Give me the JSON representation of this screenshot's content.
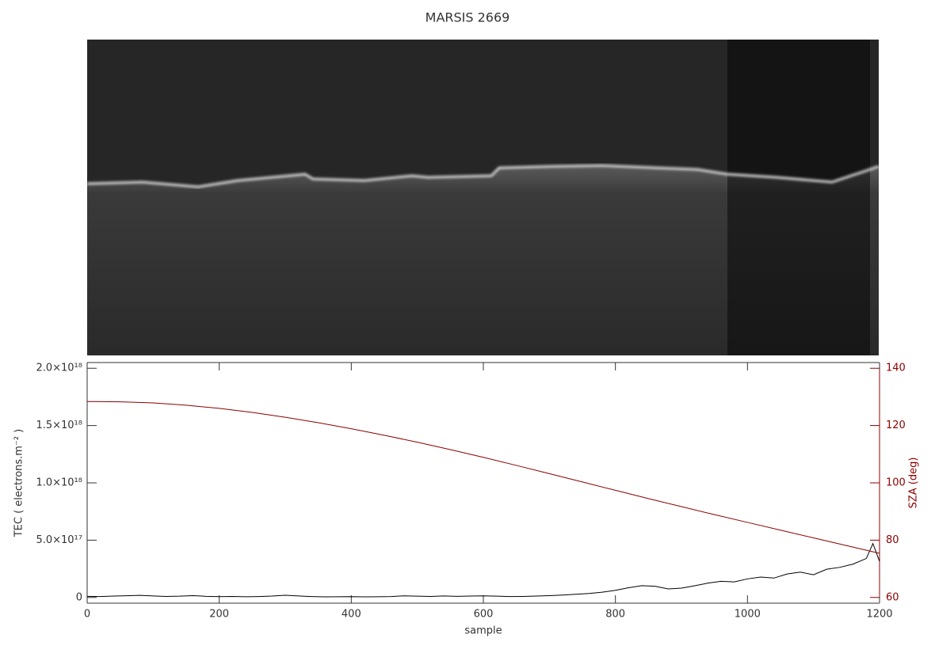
{
  "chart_data": {
    "type": "line",
    "title": "MARSIS 2669",
    "x_label": "sample",
    "y_label": "TEC ( electrons.m⁻² )",
    "y2_label": "SZA (deg)",
    "xlim": [
      0,
      1200
    ],
    "xticks": [
      0,
      200,
      400,
      600,
      800,
      1000,
      1200
    ],
    "ylim": [
      -5e+16,
      2.05e+18
    ],
    "yticks": [
      0,
      {
        "value": 5e+17,
        "label": "5.0×10¹⁷"
      },
      {
        "value": 1e+18,
        "label": "1.0×10¹⁸"
      },
      {
        "value": 1.5e+18,
        "label": "1.5×10¹⁸"
      },
      {
        "value": 2e+18,
        "label": "2.0×10¹⁸"
      }
    ],
    "y2lim": [
      58,
      142
    ],
    "y2ticks": [
      60,
      80,
      100,
      120,
      140
    ],
    "y2_color": "#8b0000",
    "series": [
      {
        "name": "TEC",
        "color": "#000000",
        "axis": "y",
        "x": [
          0,
          20,
          40,
          60,
          80,
          100,
          120,
          140,
          160,
          180,
          200,
          220,
          240,
          260,
          280,
          300,
          320,
          340,
          360,
          380,
          400,
          420,
          440,
          460,
          480,
          500,
          520,
          540,
          560,
          580,
          600,
          620,
          640,
          660,
          680,
          700,
          720,
          740,
          760,
          780,
          800,
          820,
          840,
          860,
          880,
          900,
          920,
          940,
          960,
          980,
          1000,
          1020,
          1040,
          1060,
          1080,
          1100,
          1120,
          1140,
          1160,
          1180,
          1190,
          1200
        ],
        "values": [
          1e+16,
          8000000000000000.0,
          1.2e+16,
          1.5e+16,
          1.8e+16,
          1.3e+16,
          9000000000000000.0,
          1.1e+16,
          1.6e+16,
          1e+16,
          7000000000000000.0,
          9000000000000000.0,
          6000000000000000.0,
          8000000000000000.0,
          1.2e+16,
          1.9e+16,
          1.3e+16,
          8000000000000000.0,
          5000000000000000.0,
          6000000000000000.0,
          7000000000000000.0,
          5000000000000000.0,
          6000000000000000.0,
          8000000000000000.0,
          1.4e+16,
          1.1e+16,
          9000000000000000.0,
          1.3e+16,
          1e+16,
          1.2e+16,
          1.4e+16,
          1.1e+16,
          8000000000000000.0,
          9000000000000000.0,
          1.2e+16,
          1.6e+16,
          2.1e+16,
          2.8e+16,
          3.5e+16,
          4.6e+16,
          6.2e+16,
          8.5e+16,
          1.03e+17,
          9.8e+16,
          7.4e+16,
          8.1e+16,
          1.02e+17,
          1.25e+17,
          1.41e+17,
          1.36e+17,
          1.62e+17,
          1.78e+17,
          1.69e+17,
          2.05e+17,
          2.21e+17,
          1.98e+17,
          2.46e+17,
          2.63e+17,
          2.91e+17,
          3.4e+17,
          4.7e+17,
          3.15e+17
        ]
      },
      {
        "name": "SZA",
        "color": "#8b0000",
        "axis": "y2",
        "x": [
          0,
          50,
          100,
          150,
          200,
          250,
          300,
          350,
          400,
          450,
          500,
          550,
          600,
          650,
          700,
          750,
          800,
          850,
          900,
          950,
          1000,
          1050,
          1100,
          1150,
          1200
        ],
        "values": [
          128.4,
          128.3,
          127.9,
          127.1,
          126,
          124.6,
          122.9,
          121,
          118.9,
          116.6,
          114.2,
          111.6,
          108.9,
          106.1,
          103.2,
          100.3,
          97.4,
          94.5,
          91.7,
          88.9,
          86.2,
          83.5,
          80.8,
          78.1,
          75.4
        ]
      }
    ]
  }
}
